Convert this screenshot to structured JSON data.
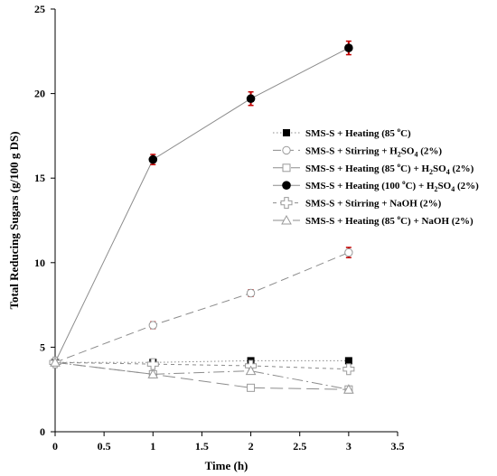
{
  "chart_data": {
    "type": "line",
    "title": "",
    "xlabel": "Time (h)",
    "ylabel": "Total Reducing Sugars (g/100 g DS)",
    "xlim": [
      0,
      3.5
    ],
    "ylim": [
      0,
      25
    ],
    "xticks": [
      "0",
      "0.5",
      "1",
      "1.5",
      "2",
      "2.5",
      "3",
      "3.5"
    ],
    "yticks": [
      "0",
      "5",
      "10",
      "15",
      "20",
      "25"
    ],
    "grid": false,
    "legend_position": "right",
    "x": [
      0,
      1,
      2,
      3
    ],
    "series": [
      {
        "name": "SMS-S + Heating (85 °C)",
        "name_parts": [
          "SMS-S + Heating (85 ",
          "o",
          "C)"
        ],
        "marker": "filled-square",
        "line": "dotted",
        "values": [
          4.1,
          4.1,
          4.2,
          4.2
        ],
        "errors": [
          0,
          0,
          0,
          0
        ]
      },
      {
        "name": "SMS-S + Stirring + H2SO4 (2%)",
        "name_parts": [
          "SMS-S + Stirring + H",
          "2",
          "SO",
          "4",
          " (2%)"
        ],
        "marker": "open-circle",
        "line": "dashed",
        "values": [
          4.1,
          6.3,
          8.2,
          10.6
        ],
        "errors": [
          0,
          0.2,
          0.2,
          0.3
        ]
      },
      {
        "name": "SMS-S + Heating (85 °C) + H2SO4 (2%)",
        "name_parts": [
          "SMS-S + Heating (85 ",
          "o",
          "C) + H",
          "2",
          "SO",
          "4",
          " (2%)"
        ],
        "marker": "open-square",
        "line": "long-dashed",
        "values": [
          4.1,
          3.4,
          2.6,
          2.5
        ],
        "errors": [
          0,
          0.1,
          0.05,
          0.05
        ]
      },
      {
        "name": "SMS-S + Heating (100 °C) + H2SO4 (2%)",
        "name_parts": [
          "SMS-S + Heating (100 ",
          "o",
          "C) + H",
          "2",
          "SO",
          "4",
          " (2%)"
        ],
        "marker": "filled-circle",
        "line": "solid",
        "values": [
          4.1,
          16.1,
          19.7,
          22.7
        ],
        "errors": [
          0,
          0.3,
          0.4,
          0.4
        ]
      },
      {
        "name": "SMS-S + Stirring + NaOH (2%)",
        "name_parts": [
          "SMS-S + Stirring + NaOH (2%)"
        ],
        "marker": "open-cross",
        "line": "short-dashed",
        "values": [
          4.1,
          4.0,
          3.9,
          3.7
        ],
        "errors": [
          0,
          0,
          0,
          0
        ]
      },
      {
        "name": "SMS-S + Heating (85 °C) + NaOH (2%)",
        "name_parts": [
          "SMS-S + Heating (85 ",
          "o",
          "C) + NaOH (2%)"
        ],
        "marker": "open-triangle",
        "line": "dash-dot",
        "values": [
          4.1,
          3.4,
          3.6,
          2.5
        ],
        "errors": [
          0,
          0,
          0,
          0
        ]
      }
    ],
    "colors": {
      "line": "#8c8c8c",
      "marker_fill_dark": "#000000",
      "marker_stroke_light": "#9a9a9a",
      "error_bar": "#c00000",
      "axis": "#000000"
    }
  }
}
